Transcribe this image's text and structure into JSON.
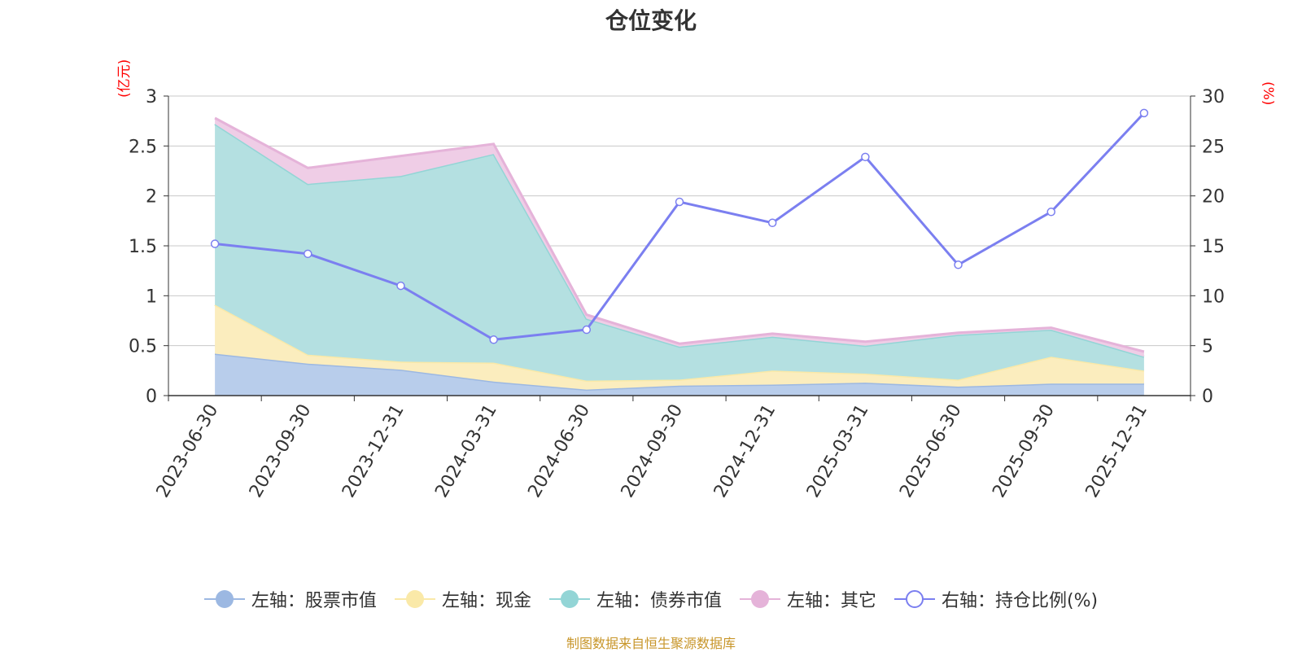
{
  "title": "仓位变化",
  "footer": "制图数据来自恒生聚源数据库",
  "chart_data": {
    "type": "area",
    "title": "仓位变化",
    "x": [
      "2023-06-30",
      "2023-09-30",
      "2023-12-31",
      "2024-03-31",
      "2024-06-30",
      "2024-09-30",
      "2024-12-31",
      "2025-03-31",
      "2025-06-30",
      "2025-09-30",
      "2025-12-31"
    ],
    "y_left": {
      "unit": "(亿元)",
      "ylim": [
        0,
        3
      ],
      "ticks": [
        "0",
        "0.5",
        "1",
        "1.5",
        "2",
        "2.5",
        "3"
      ]
    },
    "y_right": {
      "unit": "(%)",
      "ylim": [
        0,
        30
      ],
      "ticks": [
        "0",
        "5",
        "10",
        "15",
        "20",
        "25",
        "30"
      ]
    },
    "grid": true,
    "legend_position": "bottom",
    "stacked_series": [
      {
        "name": "左轴：股票市值",
        "axis": "left",
        "color": "#9cb8e2",
        "fill": "#b8cdeb",
        "values": [
          0.42,
          0.32,
          0.26,
          0.14,
          0.06,
          0.1,
          0.11,
          0.13,
          0.09,
          0.12,
          0.12
        ]
      },
      {
        "name": "左轴：现金",
        "axis": "left",
        "color": "#fae9a8",
        "fill": "#fbedbe",
        "values": [
          0.49,
          0.09,
          0.08,
          0.19,
          0.09,
          0.06,
          0.14,
          0.09,
          0.07,
          0.27,
          0.13
        ]
      },
      {
        "name": "左轴：债券市值",
        "axis": "left",
        "color": "#93d5d6",
        "fill": "#b4e0e1",
        "values": [
          1.81,
          1.71,
          1.86,
          2.09,
          0.62,
          0.33,
          0.34,
          0.28,
          0.45,
          0.27,
          0.14
        ]
      },
      {
        "name": "左轴：其它",
        "axis": "left",
        "color": "#e5b3d9",
        "fill": "#efcde6",
        "values": [
          0.06,
          0.16,
          0.2,
          0.1,
          0.04,
          0.03,
          0.03,
          0.04,
          0.02,
          0.02,
          0.05
        ]
      }
    ],
    "line_series": {
      "name": "右轴：持仓比例(%)",
      "axis": "right",
      "color": "#7b7ff0",
      "values": [
        15.2,
        14.2,
        11.0,
        5.6,
        6.6,
        19.4,
        17.3,
        23.9,
        13.1,
        18.4,
        28.3
      ]
    }
  }
}
